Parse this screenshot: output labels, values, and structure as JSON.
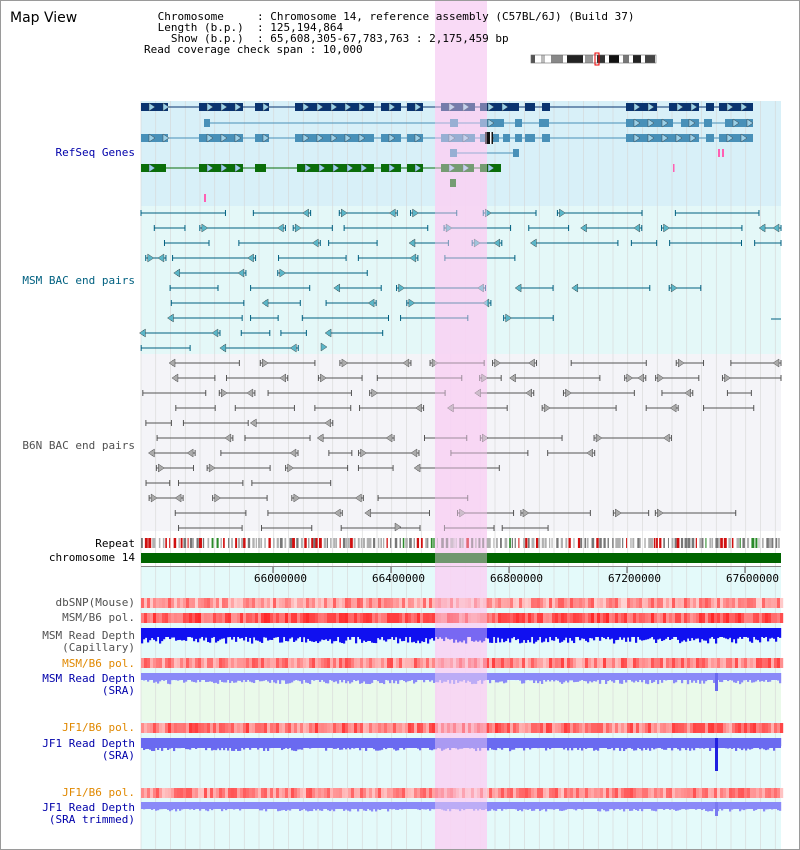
{
  "header": {
    "title": "Map View",
    "info_rows": [
      {
        "label": "Chromosome     ",
        "value": "Chromosome 14, reference assembly (C57BL/6J) (Build 37)"
      },
      {
        "label": "Length (b.p.)  ",
        "value": "125,194,864"
      },
      {
        "label": "  Show (b.p.)  ",
        "value": "65,608,305-67,783,763 : 2,175,459 bp"
      },
      {
        "label": "Read coverage check span",
        "value": "10,000"
      }
    ]
  },
  "tracks": {
    "refseq": {
      "label": "RefSeq Genes",
      "color": "#0000aa"
    },
    "msm_bac": {
      "label": "MSM BAC end pairs",
      "color": "#006080"
    },
    "b6n_bac": {
      "label": "B6N BAC end pairs",
      "color": "#505050"
    },
    "repeat": {
      "label": "Repeat"
    },
    "chromosome": {
      "label": "chromosome 14",
      "color": "#006400"
    },
    "dbsnp": {
      "label": "dbSNP(Mouse)"
    },
    "msm_b6_pol_1": {
      "label": "MSM/B6 pol."
    },
    "msm_depth_cap": {
      "label_line1": "MSM Read Depth",
      "label_line2": "(Capillary)"
    },
    "msm_b6_pol_2": {
      "label": "MSM/B6 pol."
    },
    "msm_depth_sra": {
      "label_line1": "MSM Read Depth",
      "label_line2": "(SRA)"
    },
    "jf1_b6_pol_1": {
      "label": "JF1/B6 pol."
    },
    "jf1_depth_sra": {
      "label_line1": "JF1 Read Depth",
      "label_line2": "(SRA)"
    },
    "jf1_b6_pol_2": {
      "label": "JF1/B6 pol."
    },
    "jf1_depth_trim": {
      "label_line1": "JF1 Read Depth",
      "label_line2": "(SRA trimmed)"
    }
  },
  "axis": {
    "ticks": [
      "66000000",
      "66400000",
      "66800000",
      "67200000",
      "67600000"
    ]
  },
  "colors": {
    "highlight": "#f8d4f4",
    "refseq_bg": "#d8f0f8",
    "msm_bg": "#e4f8f8",
    "b6n_bg": "#f4f4f8",
    "lower_bg": "#e4fafa",
    "gene_dark": "#0a3470",
    "gene_mid": "#4890b8",
    "gene_green": "#0a6e0a"
  }
}
